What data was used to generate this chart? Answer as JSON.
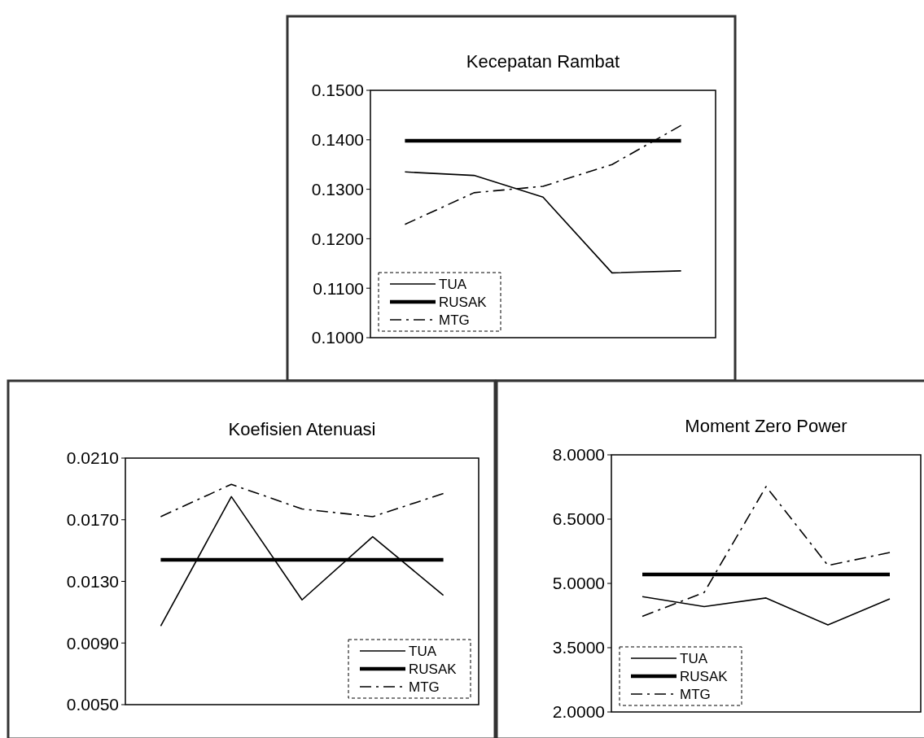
{
  "chart_data": [
    {
      "type": "line",
      "title": "Kecepatan Rambat",
      "categories": [
        null,
        null,
        null,
        null,
        null
      ],
      "ylim": [
        0.1,
        0.15
      ],
      "yticks": [
        {
          "value": 0.1,
          "label": "0.1000"
        },
        {
          "value": 0.11,
          "label": "0.1100"
        },
        {
          "value": 0.12,
          "label": "0.1200"
        },
        {
          "value": 0.13,
          "label": "0.1300"
        },
        {
          "value": 0.14,
          "label": "0.1400"
        },
        {
          "value": 0.15,
          "label": "0.1500"
        }
      ],
      "grid": false,
      "legend": "bottom left",
      "tick_labels": "y",
      "marker": "none",
      "series": [
        {
          "name": "TUA",
          "color": "#000000",
          "line_style": "solid",
          "values": [
            0.1335,
            0.1328,
            0.1284,
            0.1131,
            0.1135
          ]
        },
        {
          "name": "RUSAK",
          "color": "#000000",
          "line_style": "solid",
          "values": [
            0.1398,
            0.1398,
            0.1398,
            0.1398,
            0.1398
          ]
        },
        {
          "name": "MTG",
          "color": "#000000",
          "line_style": "dashed",
          "values": [
            0.1229,
            0.1293,
            0.1306,
            0.135,
            0.1429
          ]
        }
      ]
    },
    {
      "type": "line",
      "title": "Koefisien Atenuasi",
      "categories": [
        null,
        null,
        null,
        null,
        null
      ],
      "ylim": [
        0.005,
        0.021
      ],
      "yticks": [
        {
          "value": 0.005,
          "label": "0.0050"
        },
        {
          "value": 0.009,
          "label": "0.0090"
        },
        {
          "value": 0.013,
          "label": "0.0130"
        },
        {
          "value": 0.017,
          "label": "0.0170"
        },
        {
          "value": 0.021,
          "label": "0.0210"
        }
      ],
      "grid": false,
      "legend": "bottom right",
      "tick_labels": "y",
      "marker": "none",
      "series": [
        {
          "name": "TUA",
          "color": "#000000",
          "line_style": "solid",
          "values": [
            0.0101,
            0.0185,
            0.0118,
            0.0159,
            0.0121
          ]
        },
        {
          "name": "RUSAK",
          "color": "#000000",
          "line_style": "solid",
          "values": [
            0.0144,
            0.0144,
            0.0144,
            0.0144,
            0.0144
          ]
        },
        {
          "name": "MTG",
          "color": "#000000",
          "line_style": "dashed",
          "values": [
            0.0172,
            0.0193,
            0.0177,
            0.0172,
            0.0187
          ]
        }
      ]
    },
    {
      "type": "line",
      "title": "Moment Zero Power",
      "categories": [
        null,
        null,
        null,
        null,
        null
      ],
      "ylim": [
        2,
        8
      ],
      "yticks": [
        {
          "value": 2,
          "label": "2.0000"
        },
        {
          "value": 3.5,
          "label": "3.5000"
        },
        {
          "value": 5,
          "label": "5.0000"
        },
        {
          "value": 6.5,
          "label": "6.5000"
        },
        {
          "value": 8,
          "label": "8.0000"
        }
      ],
      "grid": false,
      "legend": "bottom left",
      "tick_labels": "y",
      "marker": "none",
      "series": [
        {
          "name": "TUA",
          "color": "#000000",
          "line_style": "solid",
          "values": [
            4.69,
            4.46,
            4.66,
            4.03,
            4.64
          ]
        },
        {
          "name": "RUSAK",
          "color": "#000000",
          "line_style": "solid",
          "values": [
            5.21,
            5.21,
            5.21,
            5.21,
            5.21
          ]
        },
        {
          "name": "MTG",
          "color": "#000000",
          "line_style": "dashed",
          "values": [
            4.23,
            4.79,
            7.26,
            5.42,
            5.72
          ]
        }
      ]
    }
  ]
}
